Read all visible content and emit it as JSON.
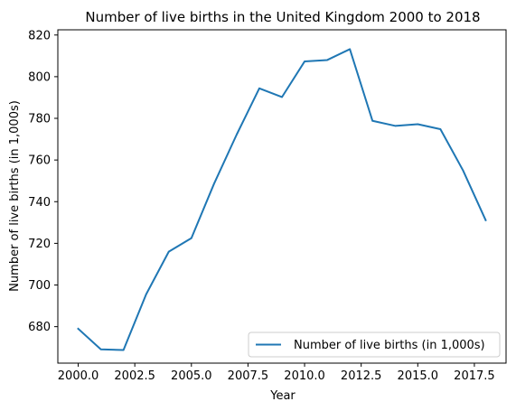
{
  "chart_data": {
    "type": "line",
    "title": "Number of live births in the United Kingdom 2000 to 2018",
    "xlabel": "Year",
    "ylabel": "Number of live births (in 1,000s)",
    "xlim": [
      1999.1,
      2018.9
    ],
    "ylim": [
      662.5,
      822.5
    ],
    "xticks": [
      2000.0,
      2002.5,
      2005.0,
      2007.5,
      2010.0,
      2012.5,
      2015.0,
      2017.5
    ],
    "xtick_labels": [
      "2000.0",
      "2002.5",
      "2005.0",
      "2007.5",
      "2010.0",
      "2012.5",
      "2015.0",
      "2017.5"
    ],
    "yticks": [
      680,
      700,
      720,
      740,
      760,
      780,
      800,
      820
    ],
    "ytick_labels": [
      "680",
      "700",
      "720",
      "740",
      "760",
      "780",
      "800",
      "820"
    ],
    "grid": false,
    "legend_position": "lower-right",
    "series": [
      {
        "name": "Number of live births (in 1,000s)",
        "color": "#1f77b4",
        "x": [
          2000,
          2001,
          2002,
          2003,
          2004,
          2005,
          2006,
          2007,
          2008,
          2009,
          2010,
          2011,
          2012,
          2013,
          2014,
          2015,
          2016,
          2017,
          2018
        ],
        "y": [
          679.0,
          669.1,
          668.8,
          695.5,
          716.0,
          722.5,
          748.6,
          772.2,
          794.4,
          790.2,
          807.3,
          808.0,
          813.2,
          778.8,
          776.4,
          777.2,
          774.8,
          755.0,
          731.1
        ]
      }
    ]
  }
}
